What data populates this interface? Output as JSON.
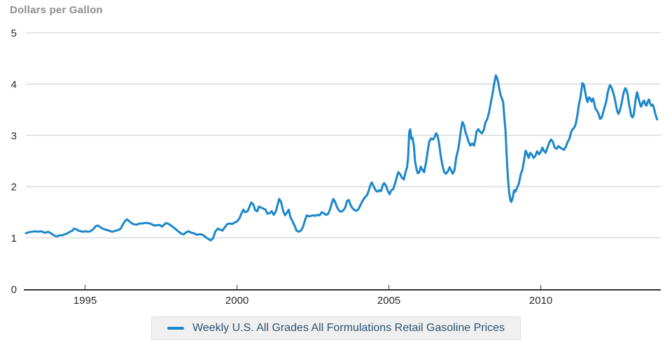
{
  "title": "Dollars per Gallon",
  "legend": {
    "label": "Weekly U.S. All Grades All Formulations Retail Gasoline Prices"
  },
  "colors": {
    "line": "#1b87c9",
    "grid": "#cccccc",
    "axis": "#333333",
    "title_text": "#8e8e8e",
    "tick_text": "#2b2b2b",
    "legend_bg": "#f0f0f0",
    "legend_border": "#e0e0e0",
    "legend_text": "#2e536f"
  },
  "chart_data": {
    "type": "line",
    "title": "Dollars per Gallon",
    "y_axis_title": "Dollars per Gallon",
    "series_name": "Weekly U.S. All Grades All Formulations Retail Gasoline Prices",
    "x_unit": "year (decimal)",
    "y_unit": "dollars per gallon",
    "xlim": [
      1993.05,
      2013.95
    ],
    "ylim": [
      0,
      5
    ],
    "y_ticks": [
      0,
      1,
      2,
      3,
      4,
      5
    ],
    "x_ticks": [
      1995,
      2000,
      2005,
      2010
    ],
    "x_tick_labels": [
      "1995",
      "2000",
      "2005",
      "2010"
    ],
    "grid": "horizontal gridlines only",
    "legend_position": "bottom center",
    "points": [
      [
        1993.05,
        1.09
      ],
      [
        1993.15,
        1.11
      ],
      [
        1993.25,
        1.12
      ],
      [
        1993.35,
        1.13
      ],
      [
        1993.45,
        1.12
      ],
      [
        1993.55,
        1.13
      ],
      [
        1993.62,
        1.11
      ],
      [
        1993.7,
        1.1
      ],
      [
        1993.78,
        1.12
      ],
      [
        1993.85,
        1.1
      ],
      [
        1993.92,
        1.07
      ],
      [
        1994.0,
        1.04
      ],
      [
        1994.08,
        1.03
      ],
      [
        1994.16,
        1.05
      ],
      [
        1994.25,
        1.05
      ],
      [
        1994.33,
        1.07
      ],
      [
        1994.42,
        1.09
      ],
      [
        1994.5,
        1.12
      ],
      [
        1994.58,
        1.14
      ],
      [
        1994.63,
        1.18
      ],
      [
        1994.7,
        1.17
      ],
      [
        1994.78,
        1.14
      ],
      [
        1994.86,
        1.13
      ],
      [
        1994.94,
        1.12
      ],
      [
        1995.02,
        1.13
      ],
      [
        1995.1,
        1.12
      ],
      [
        1995.18,
        1.13
      ],
      [
        1995.27,
        1.17
      ],
      [
        1995.35,
        1.23
      ],
      [
        1995.42,
        1.24
      ],
      [
        1995.5,
        1.21
      ],
      [
        1995.58,
        1.18
      ],
      [
        1995.67,
        1.16
      ],
      [
        1995.75,
        1.15
      ],
      [
        1995.83,
        1.13
      ],
      [
        1995.92,
        1.12
      ],
      [
        1996.0,
        1.14
      ],
      [
        1996.08,
        1.15
      ],
      [
        1996.17,
        1.18
      ],
      [
        1996.25,
        1.27
      ],
      [
        1996.33,
        1.34
      ],
      [
        1996.38,
        1.36
      ],
      [
        1996.46,
        1.32
      ],
      [
        1996.54,
        1.28
      ],
      [
        1996.63,
        1.26
      ],
      [
        1996.71,
        1.26
      ],
      [
        1996.79,
        1.28
      ],
      [
        1996.88,
        1.28
      ],
      [
        1996.96,
        1.29
      ],
      [
        1997.04,
        1.29
      ],
      [
        1997.13,
        1.28
      ],
      [
        1997.21,
        1.26
      ],
      [
        1997.29,
        1.24
      ],
      [
        1997.38,
        1.25
      ],
      [
        1997.46,
        1.25
      ],
      [
        1997.54,
        1.22
      ],
      [
        1997.6,
        1.26
      ],
      [
        1997.67,
        1.29
      ],
      [
        1997.75,
        1.27
      ],
      [
        1997.83,
        1.24
      ],
      [
        1997.92,
        1.2
      ],
      [
        1998.0,
        1.16
      ],
      [
        1998.08,
        1.12
      ],
      [
        1998.17,
        1.08
      ],
      [
        1998.25,
        1.07
      ],
      [
        1998.33,
        1.11
      ],
      [
        1998.4,
        1.13
      ],
      [
        1998.5,
        1.1
      ],
      [
        1998.58,
        1.09
      ],
      [
        1998.67,
        1.06
      ],
      [
        1998.75,
        1.07
      ],
      [
        1998.83,
        1.07
      ],
      [
        1998.92,
        1.04
      ],
      [
        1999.0,
        1.0
      ],
      [
        1999.08,
        0.97
      ],
      [
        1999.13,
        0.95
      ],
      [
        1999.21,
        0.99
      ],
      [
        1999.29,
        1.13
      ],
      [
        1999.37,
        1.18
      ],
      [
        1999.45,
        1.16
      ],
      [
        1999.52,
        1.14
      ],
      [
        1999.6,
        1.21
      ],
      [
        1999.68,
        1.27
      ],
      [
        1999.76,
        1.28
      ],
      [
        1999.84,
        1.27
      ],
      [
        1999.92,
        1.3
      ],
      [
        2000.0,
        1.32
      ],
      [
        2000.08,
        1.38
      ],
      [
        2000.14,
        1.47
      ],
      [
        2000.21,
        1.55
      ],
      [
        2000.27,
        1.5
      ],
      [
        2000.35,
        1.52
      ],
      [
        2000.42,
        1.62
      ],
      [
        2000.47,
        1.69
      ],
      [
        2000.54,
        1.65
      ],
      [
        2000.6,
        1.54
      ],
      [
        2000.67,
        1.52
      ],
      [
        2000.72,
        1.61
      ],
      [
        2000.79,
        1.59
      ],
      [
        2000.87,
        1.57
      ],
      [
        2000.94,
        1.55
      ],
      [
        2001.0,
        1.47
      ],
      [
        2001.07,
        1.48
      ],
      [
        2001.14,
        1.52
      ],
      [
        2001.21,
        1.45
      ],
      [
        2001.28,
        1.52
      ],
      [
        2001.35,
        1.68
      ],
      [
        2001.39,
        1.76
      ],
      [
        2001.45,
        1.7
      ],
      [
        2001.52,
        1.52
      ],
      [
        2001.58,
        1.44
      ],
      [
        2001.64,
        1.49
      ],
      [
        2001.7,
        1.55
      ],
      [
        2001.76,
        1.4
      ],
      [
        2001.83,
        1.32
      ],
      [
        2001.9,
        1.23
      ],
      [
        2001.96,
        1.14
      ],
      [
        2002.03,
        1.12
      ],
      [
        2002.1,
        1.14
      ],
      [
        2002.17,
        1.21
      ],
      [
        2002.24,
        1.35
      ],
      [
        2002.3,
        1.44
      ],
      [
        2002.37,
        1.42
      ],
      [
        2002.44,
        1.43
      ],
      [
        2002.51,
        1.44
      ],
      [
        2002.58,
        1.43
      ],
      [
        2002.65,
        1.45
      ],
      [
        2002.72,
        1.44
      ],
      [
        2002.79,
        1.5
      ],
      [
        2002.86,
        1.48
      ],
      [
        2002.93,
        1.45
      ],
      [
        2003.0,
        1.47
      ],
      [
        2003.06,
        1.55
      ],
      [
        2003.12,
        1.68
      ],
      [
        2003.17,
        1.76
      ],
      [
        2003.23,
        1.7
      ],
      [
        2003.29,
        1.6
      ],
      [
        2003.36,
        1.53
      ],
      [
        2003.43,
        1.51
      ],
      [
        2003.5,
        1.54
      ],
      [
        2003.56,
        1.59
      ],
      [
        2003.62,
        1.72
      ],
      [
        2003.68,
        1.74
      ],
      [
        2003.74,
        1.64
      ],
      [
        2003.8,
        1.58
      ],
      [
        2003.87,
        1.54
      ],
      [
        2003.94,
        1.53
      ],
      [
        2004.0,
        1.56
      ],
      [
        2004.07,
        1.65
      ],
      [
        2004.14,
        1.73
      ],
      [
        2004.21,
        1.79
      ],
      [
        2004.28,
        1.83
      ],
      [
        2004.34,
        1.93
      ],
      [
        2004.4,
        2.05
      ],
      [
        2004.44,
        2.08
      ],
      [
        2004.5,
        2.0
      ],
      [
        2004.56,
        1.93
      ],
      [
        2004.62,
        1.9
      ],
      [
        2004.68,
        1.93
      ],
      [
        2004.74,
        1.91
      ],
      [
        2004.8,
        2.03
      ],
      [
        2004.84,
        2.07
      ],
      [
        2004.9,
        2.02
      ],
      [
        2004.96,
        1.92
      ],
      [
        2005.02,
        1.85
      ],
      [
        2005.08,
        1.93
      ],
      [
        2005.14,
        1.95
      ],
      [
        2005.2,
        2.06
      ],
      [
        2005.26,
        2.19
      ],
      [
        2005.31,
        2.28
      ],
      [
        2005.37,
        2.24
      ],
      [
        2005.43,
        2.17
      ],
      [
        2005.49,
        2.14
      ],
      [
        2005.55,
        2.29
      ],
      [
        2005.6,
        2.38
      ],
      [
        2005.63,
        2.55
      ],
      [
        2005.67,
        3.07
      ],
      [
        2005.7,
        3.12
      ],
      [
        2005.74,
        2.93
      ],
      [
        2005.78,
        2.95
      ],
      [
        2005.82,
        2.8
      ],
      [
        2005.86,
        2.5
      ],
      [
        2005.9,
        2.36
      ],
      [
        2005.95,
        2.26
      ],
      [
        2006.0,
        2.28
      ],
      [
        2006.05,
        2.39
      ],
      [
        2006.1,
        2.33
      ],
      [
        2006.16,
        2.28
      ],
      [
        2006.22,
        2.46
      ],
      [
        2006.28,
        2.7
      ],
      [
        2006.33,
        2.88
      ],
      [
        2006.39,
        2.94
      ],
      [
        2006.45,
        2.92
      ],
      [
        2006.5,
        2.96
      ],
      [
        2006.55,
        3.04
      ],
      [
        2006.6,
        3.0
      ],
      [
        2006.65,
        2.85
      ],
      [
        2006.7,
        2.62
      ],
      [
        2006.76,
        2.42
      ],
      [
        2006.82,
        2.28
      ],
      [
        2006.88,
        2.25
      ],
      [
        2006.94,
        2.3
      ],
      [
        2007.0,
        2.38
      ],
      [
        2007.05,
        2.31
      ],
      [
        2007.1,
        2.25
      ],
      [
        2007.16,
        2.32
      ],
      [
        2007.22,
        2.58
      ],
      [
        2007.28,
        2.72
      ],
      [
        2007.33,
        2.92
      ],
      [
        2007.38,
        3.14
      ],
      [
        2007.42,
        3.26
      ],
      [
        2007.47,
        3.2
      ],
      [
        2007.52,
        3.06
      ],
      [
        2007.57,
        2.98
      ],
      [
        2007.62,
        2.88
      ],
      [
        2007.68,
        2.8
      ],
      [
        2007.74,
        2.84
      ],
      [
        2007.8,
        2.8
      ],
      [
        2007.84,
        2.9
      ],
      [
        2007.89,
        3.08
      ],
      [
        2007.94,
        3.12
      ],
      [
        2008.0,
        3.07
      ],
      [
        2008.06,
        3.04
      ],
      [
        2008.12,
        3.1
      ],
      [
        2008.18,
        3.26
      ],
      [
        2008.24,
        3.32
      ],
      [
        2008.3,
        3.46
      ],
      [
        2008.36,
        3.65
      ],
      [
        2008.42,
        3.84
      ],
      [
        2008.47,
        4.02
      ],
      [
        2008.52,
        4.17
      ],
      [
        2008.56,
        4.12
      ],
      [
        2008.6,
        4.03
      ],
      [
        2008.64,
        3.88
      ],
      [
        2008.68,
        3.78
      ],
      [
        2008.72,
        3.72
      ],
      [
        2008.76,
        3.65
      ],
      [
        2008.8,
        3.35
      ],
      [
        2008.84,
        3.08
      ],
      [
        2008.88,
        2.55
      ],
      [
        2008.92,
        2.15
      ],
      [
        2008.96,
        1.88
      ],
      [
        2009.0,
        1.73
      ],
      [
        2009.03,
        1.7
      ],
      [
        2009.08,
        1.8
      ],
      [
        2009.12,
        1.93
      ],
      [
        2009.16,
        1.9
      ],
      [
        2009.22,
        1.98
      ],
      [
        2009.28,
        2.06
      ],
      [
        2009.34,
        2.24
      ],
      [
        2009.4,
        2.34
      ],
      [
        2009.46,
        2.55
      ],
      [
        2009.5,
        2.7
      ],
      [
        2009.55,
        2.64
      ],
      [
        2009.6,
        2.56
      ],
      [
        2009.65,
        2.66
      ],
      [
        2009.7,
        2.63
      ],
      [
        2009.76,
        2.56
      ],
      [
        2009.82,
        2.6
      ],
      [
        2009.88,
        2.69
      ],
      [
        2009.94,
        2.63
      ],
      [
        2010.0,
        2.68
      ],
      [
        2010.05,
        2.76
      ],
      [
        2010.1,
        2.7
      ],
      [
        2010.16,
        2.66
      ],
      [
        2010.22,
        2.76
      ],
      [
        2010.28,
        2.86
      ],
      [
        2010.34,
        2.92
      ],
      [
        2010.4,
        2.87
      ],
      [
        2010.46,
        2.76
      ],
      [
        2010.52,
        2.74
      ],
      [
        2010.58,
        2.79
      ],
      [
        2010.64,
        2.76
      ],
      [
        2010.7,
        2.74
      ],
      [
        2010.76,
        2.72
      ],
      [
        2010.82,
        2.77
      ],
      [
        2010.88,
        2.87
      ],
      [
        2010.94,
        2.93
      ],
      [
        2011.0,
        3.07
      ],
      [
        2011.05,
        3.12
      ],
      [
        2011.1,
        3.15
      ],
      [
        2011.15,
        3.22
      ],
      [
        2011.2,
        3.38
      ],
      [
        2011.25,
        3.58
      ],
      [
        2011.3,
        3.73
      ],
      [
        2011.34,
        3.89
      ],
      [
        2011.37,
        4.02
      ],
      [
        2011.42,
        3.98
      ],
      [
        2011.46,
        3.85
      ],
      [
        2011.5,
        3.72
      ],
      [
        2011.54,
        3.65
      ],
      [
        2011.58,
        3.74
      ],
      [
        2011.62,
        3.73
      ],
      [
        2011.67,
        3.66
      ],
      [
        2011.72,
        3.72
      ],
      [
        2011.76,
        3.62
      ],
      [
        2011.8,
        3.52
      ],
      [
        2011.85,
        3.48
      ],
      [
        2011.9,
        3.42
      ],
      [
        2011.95,
        3.32
      ],
      [
        2012.0,
        3.34
      ],
      [
        2012.05,
        3.44
      ],
      [
        2012.1,
        3.55
      ],
      [
        2012.15,
        3.65
      ],
      [
        2012.2,
        3.83
      ],
      [
        2012.25,
        3.94
      ],
      [
        2012.28,
        3.98
      ],
      [
        2012.33,
        3.93
      ],
      [
        2012.38,
        3.84
      ],
      [
        2012.43,
        3.73
      ],
      [
        2012.48,
        3.58
      ],
      [
        2012.52,
        3.46
      ],
      [
        2012.56,
        3.42
      ],
      [
        2012.6,
        3.48
      ],
      [
        2012.65,
        3.6
      ],
      [
        2012.7,
        3.76
      ],
      [
        2012.74,
        3.86
      ],
      [
        2012.78,
        3.92
      ],
      [
        2012.82,
        3.88
      ],
      [
        2012.86,
        3.8
      ],
      [
        2012.9,
        3.62
      ],
      [
        2012.94,
        3.5
      ],
      [
        2012.98,
        3.38
      ],
      [
        2013.02,
        3.35
      ],
      [
        2013.06,
        3.4
      ],
      [
        2013.1,
        3.6
      ],
      [
        2013.14,
        3.76
      ],
      [
        2013.17,
        3.84
      ],
      [
        2013.22,
        3.72
      ],
      [
        2013.26,
        3.62
      ],
      [
        2013.3,
        3.56
      ],
      [
        2013.35,
        3.64
      ],
      [
        2013.4,
        3.68
      ],
      [
        2013.44,
        3.6
      ],
      [
        2013.48,
        3.58
      ],
      [
        2013.52,
        3.66
      ],
      [
        2013.56,
        3.7
      ],
      [
        2013.6,
        3.62
      ],
      [
        2013.64,
        3.58
      ],
      [
        2013.68,
        3.6
      ],
      [
        2013.72,
        3.54
      ],
      [
        2013.76,
        3.44
      ],
      [
        2013.8,
        3.36
      ],
      [
        2013.83,
        3.31
      ]
    ]
  }
}
